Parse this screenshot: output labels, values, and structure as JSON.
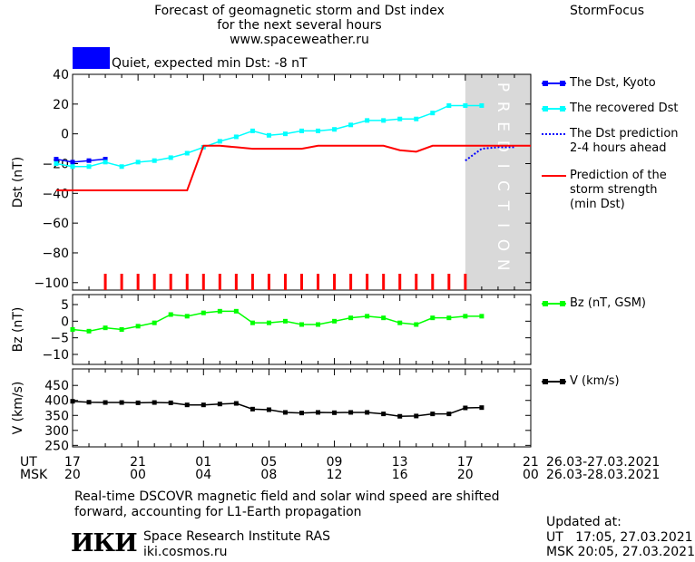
{
  "header": {
    "title_line1": "Forecast of geomagnetic storm and Dst index",
    "title_line2": "for the next several hours",
    "url": "www.spaceweather.ru",
    "brand": "StormFocus"
  },
  "status": {
    "label": "Quiet, expected min Dst: -8 nT",
    "color": "#0000ff"
  },
  "chart_data": [
    {
      "type": "line",
      "panel": "Dst",
      "ylabel": "Dst (nT)",
      "ylim": [
        -105,
        40
      ],
      "yticks": [
        40,
        20,
        0,
        -20,
        -40,
        -60,
        -80,
        -100
      ],
      "x_hours": "hours from 17 UT, 26.03",
      "xlim": [
        0,
        28
      ],
      "prediction_zone": {
        "from": 24,
        "to": 28,
        "label": "PREDICTION"
      },
      "series": [
        {
          "name": "The Dst, Kyoto",
          "color": "#0000ff",
          "x": [
            -1,
            0,
            1,
            2
          ],
          "y": [
            -17,
            -19,
            -18,
            -17
          ]
        },
        {
          "name": "The recovered Dst",
          "color": "#00ffff",
          "x": [
            -1,
            0,
            1,
            2,
            3,
            4,
            5,
            6,
            7,
            8,
            9,
            10,
            11,
            12,
            13,
            14,
            15,
            16,
            17,
            18,
            19,
            20,
            21,
            22,
            23,
            24,
            25
          ],
          "y": [
            -20,
            -22,
            -22,
            -19,
            -22,
            -19,
            -18,
            -16,
            -13,
            -9,
            -5,
            -2,
            2,
            -1,
            0,
            2,
            2,
            3,
            6,
            9,
            9,
            10,
            10,
            14,
            19,
            19,
            19
          ]
        },
        {
          "name": "The Dst prediction\n2-4 hours ahead",
          "color": "#0000ff",
          "x": [
            24,
            25,
            26,
            27
          ],
          "y": [
            -18,
            -10,
            -9,
            -9
          ]
        },
        {
          "name": "Prediction of the\nstorm strength\n(min Dst)",
          "color": "#ff0000",
          "x": [
            -1,
            7,
            8,
            9,
            10,
            11,
            12,
            13,
            14,
            15,
            16,
            17,
            18,
            19,
            20,
            21,
            22,
            23,
            24,
            25,
            26,
            27,
            28
          ],
          "y": [
            -38,
            -38,
            -8,
            -8,
            -9,
            -10,
            -10,
            -10,
            -10,
            -8,
            -8,
            -8,
            -8,
            -8,
            -11,
            -12,
            -8,
            -8,
            -8,
            -8,
            -8,
            -8,
            -8
          ]
        }
      ]
    },
    {
      "type": "line",
      "panel": "Bz",
      "ylabel": "Bz (nT)",
      "ylim": [
        -13,
        8
      ],
      "yticks": [
        5,
        0,
        -5,
        -10
      ],
      "series": [
        {
          "name": "Bz (nT, GSM)",
          "color": "#00ff00",
          "x": [
            0,
            1,
            2,
            3,
            4,
            5,
            6,
            7,
            8,
            9,
            10,
            11,
            12,
            13,
            14,
            15,
            16,
            17,
            18,
            19,
            20,
            21,
            22,
            23,
            24,
            25
          ],
          "y": [
            -2.5,
            -3,
            -2,
            -2.5,
            -1.5,
            -0.5,
            2,
            1.5,
            2.5,
            3,
            3,
            -0.5,
            -0.5,
            0,
            -1,
            -1,
            0,
            1,
            1.5,
            1,
            -0.5,
            -1,
            1,
            1,
            1.5,
            1.5
          ]
        }
      ]
    },
    {
      "type": "line",
      "panel": "V",
      "ylabel": "V (km/s)",
      "ylim": [
        245,
        505
      ],
      "yticks": [
        450,
        400,
        350,
        300,
        250
      ],
      "series": [
        {
          "name": "V (km/s)",
          "color": "#000000",
          "x": [
            0,
            1,
            2,
            3,
            4,
            5,
            6,
            7,
            8,
            9,
            10,
            11,
            12,
            13,
            14,
            15,
            16,
            17,
            18,
            19,
            20,
            21,
            22,
            23,
            24,
            25
          ],
          "y": [
            397,
            394,
            393,
            393,
            392,
            393,
            392,
            385,
            385,
            388,
            390,
            371,
            369,
            360,
            358,
            360,
            359,
            360,
            360,
            355,
            347,
            348,
            355,
            355,
            375,
            376
          ]
        }
      ]
    }
  ],
  "x_axis": {
    "ut_label": "UT",
    "msk_label": "MSK",
    "ut_ticks": [
      "17",
      "21",
      "01",
      "05",
      "09",
      "13",
      "17",
      "21"
    ],
    "msk_ticks": [
      "20",
      "00",
      "04",
      "08",
      "12",
      "16",
      "20",
      "00"
    ],
    "ut_range": "26.03-27.03.2021",
    "msk_range": "26.03-28.03.2021"
  },
  "footer": {
    "note_line1": "Real-time DSCOVR magnetic field and solar wind speed are shifted",
    "note_line2": "forward, accounting for L1-Earth propagation",
    "logo": "ИКИ",
    "institute": "Space Research Institute RAS",
    "site": "iki.cosmos.ru",
    "updated_label": "Updated at:",
    "updated_ut": "UT   17:05, 27.03.2021",
    "updated_msk": "MSK 20:05, 27.03.2021"
  }
}
